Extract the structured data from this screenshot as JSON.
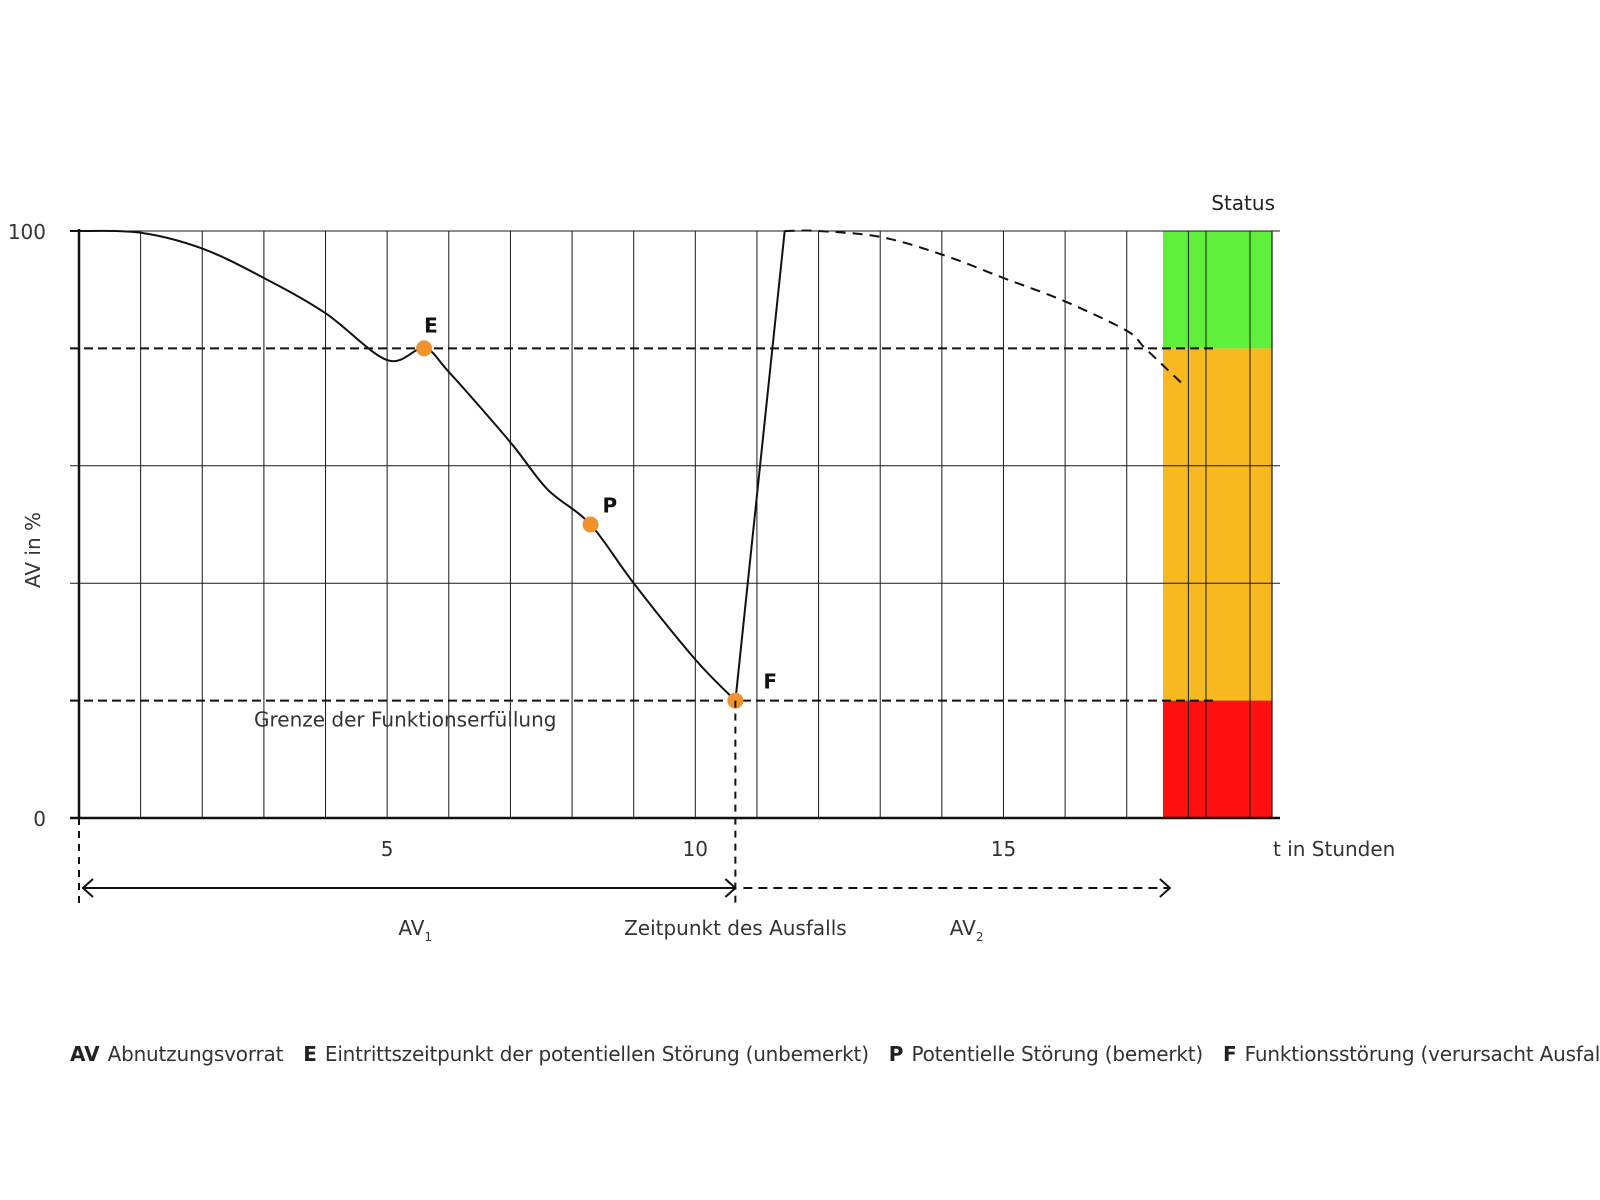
{
  "chart_data": {
    "type": "line",
    "ylabel": "AV in %",
    "xlabel": "t in Stunden",
    "ylim": [
      0,
      100
    ],
    "xlim": [
      0,
      19
    ],
    "y_ticks": [
      {
        "value": 0,
        "label": "0"
      },
      {
        "value": 100,
        "label": "100"
      }
    ],
    "x_ticks": [
      {
        "value": 5,
        "label": "5"
      },
      {
        "value": 10,
        "label": "10"
      },
      {
        "value": 15,
        "label": "15"
      }
    ],
    "grid": true,
    "series": [
      {
        "style": "solid",
        "x": [
          0,
          1,
          2,
          3,
          4,
          5,
          5.6,
          6,
          7,
          7.6,
          8.3,
          9,
          10,
          10.65
        ],
        "y": [
          100,
          99.7,
          97,
          92,
          86,
          78,
          80,
          76,
          64,
          56,
          50,
          40,
          27,
          20
        ]
      },
      {
        "style": "solid",
        "x": [
          10.65,
          11.45
        ],
        "y": [
          20,
          100
        ]
      },
      {
        "style": "dashed",
        "x": [
          11.45,
          12,
          13,
          14,
          15,
          16,
          17,
          17.3,
          17.9
        ],
        "y": [
          100,
          100,
          99,
          96,
          92,
          88,
          83,
          80,
          74
        ]
      }
    ],
    "points": [
      {
        "label": "E",
        "x": 5.6,
        "y": 80,
        "color": "#f0922e"
      },
      {
        "label": "P",
        "x": 8.3,
        "y": 50,
        "color": "#f0922e"
      },
      {
        "label": "F",
        "x": 10.65,
        "y": 20,
        "color": "#f0922e"
      }
    ],
    "threshold_lines": [
      {
        "y": 80,
        "style": "dashed"
      },
      {
        "y": 20,
        "style": "dashed",
        "label": "Grenze der Funktionserfüllung"
      }
    ],
    "failure_time": {
      "x": 10.65,
      "label": "Zeitpunkt des Ausfalls"
    },
    "spans": [
      {
        "from": 0,
        "to": 10.65,
        "label": "AV",
        "sub": "1",
        "style": "solid"
      },
      {
        "from": 10.65,
        "to": 17.7,
        "label": "AV",
        "sub": "2",
        "style": "dashed"
      }
    ],
    "status": {
      "title": "Status",
      "bands": [
        {
          "from": 80,
          "to": 100,
          "color": "#5ef03a"
        },
        {
          "from": 20,
          "to": 80,
          "color": "#f8b820"
        },
        {
          "from": 0,
          "to": 20,
          "color": "#fe1010"
        }
      ]
    }
  },
  "legend": [
    {
      "key": "AV",
      "text": "Abnutzungsvorrat"
    },
    {
      "key": "E",
      "text": "Eintrittszeitpunkt der potentiellen Störung (unbemerkt)"
    },
    {
      "key": "P",
      "text": "Potentielle Störung (bemerkt)"
    },
    {
      "key": "F",
      "text": "Funktionsstörung (verursacht Ausfall)"
    }
  ]
}
